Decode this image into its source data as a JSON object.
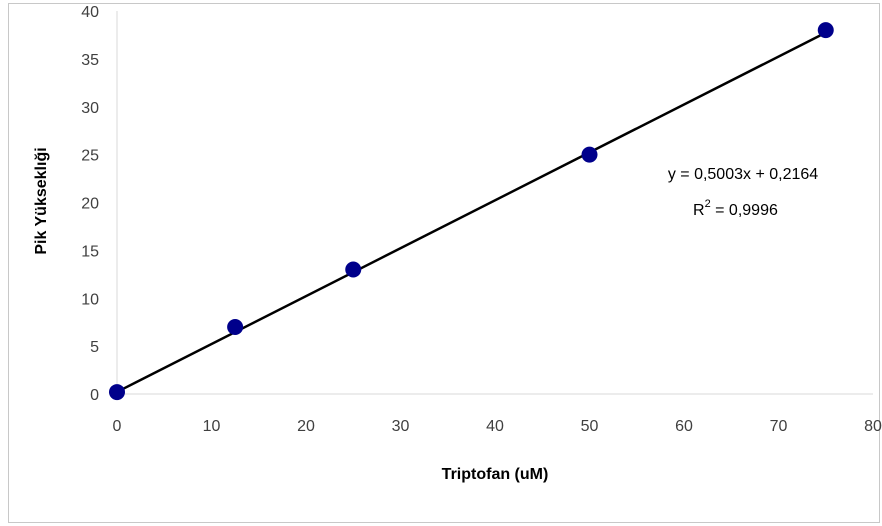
{
  "chart_data": {
    "type": "scatter",
    "title": "",
    "xlabel": "Triptofan (uM)",
    "ylabel": "Pik Yükseklıği",
    "xlim": [
      0,
      80
    ],
    "ylim": [
      0,
      40
    ],
    "x_ticks": [
      "0",
      "10",
      "20",
      "30",
      "40",
      "50",
      "60",
      "70",
      "80"
    ],
    "y_ticks": [
      "0",
      "5",
      "10",
      "15",
      "20",
      "25",
      "30",
      "35",
      "40"
    ],
    "grid": false,
    "legend": "none",
    "series": [
      {
        "x": [
          0,
          12.5,
          25,
          50,
          75
        ],
        "y": [
          0.2,
          7,
          13,
          25,
          38
        ],
        "marker_color": "#00008b"
      }
    ],
    "trendline": {
      "type": "linear",
      "slope": 0.5003,
      "intercept": 0.2164,
      "x_range": [
        0,
        75
      ],
      "color": "#000000"
    },
    "annotations": {
      "equation": "y = 0,5003x + 0,2164",
      "r2_prefix": "R",
      "r2_sup": "2",
      "r2_value": " = 0,9996"
    }
  }
}
